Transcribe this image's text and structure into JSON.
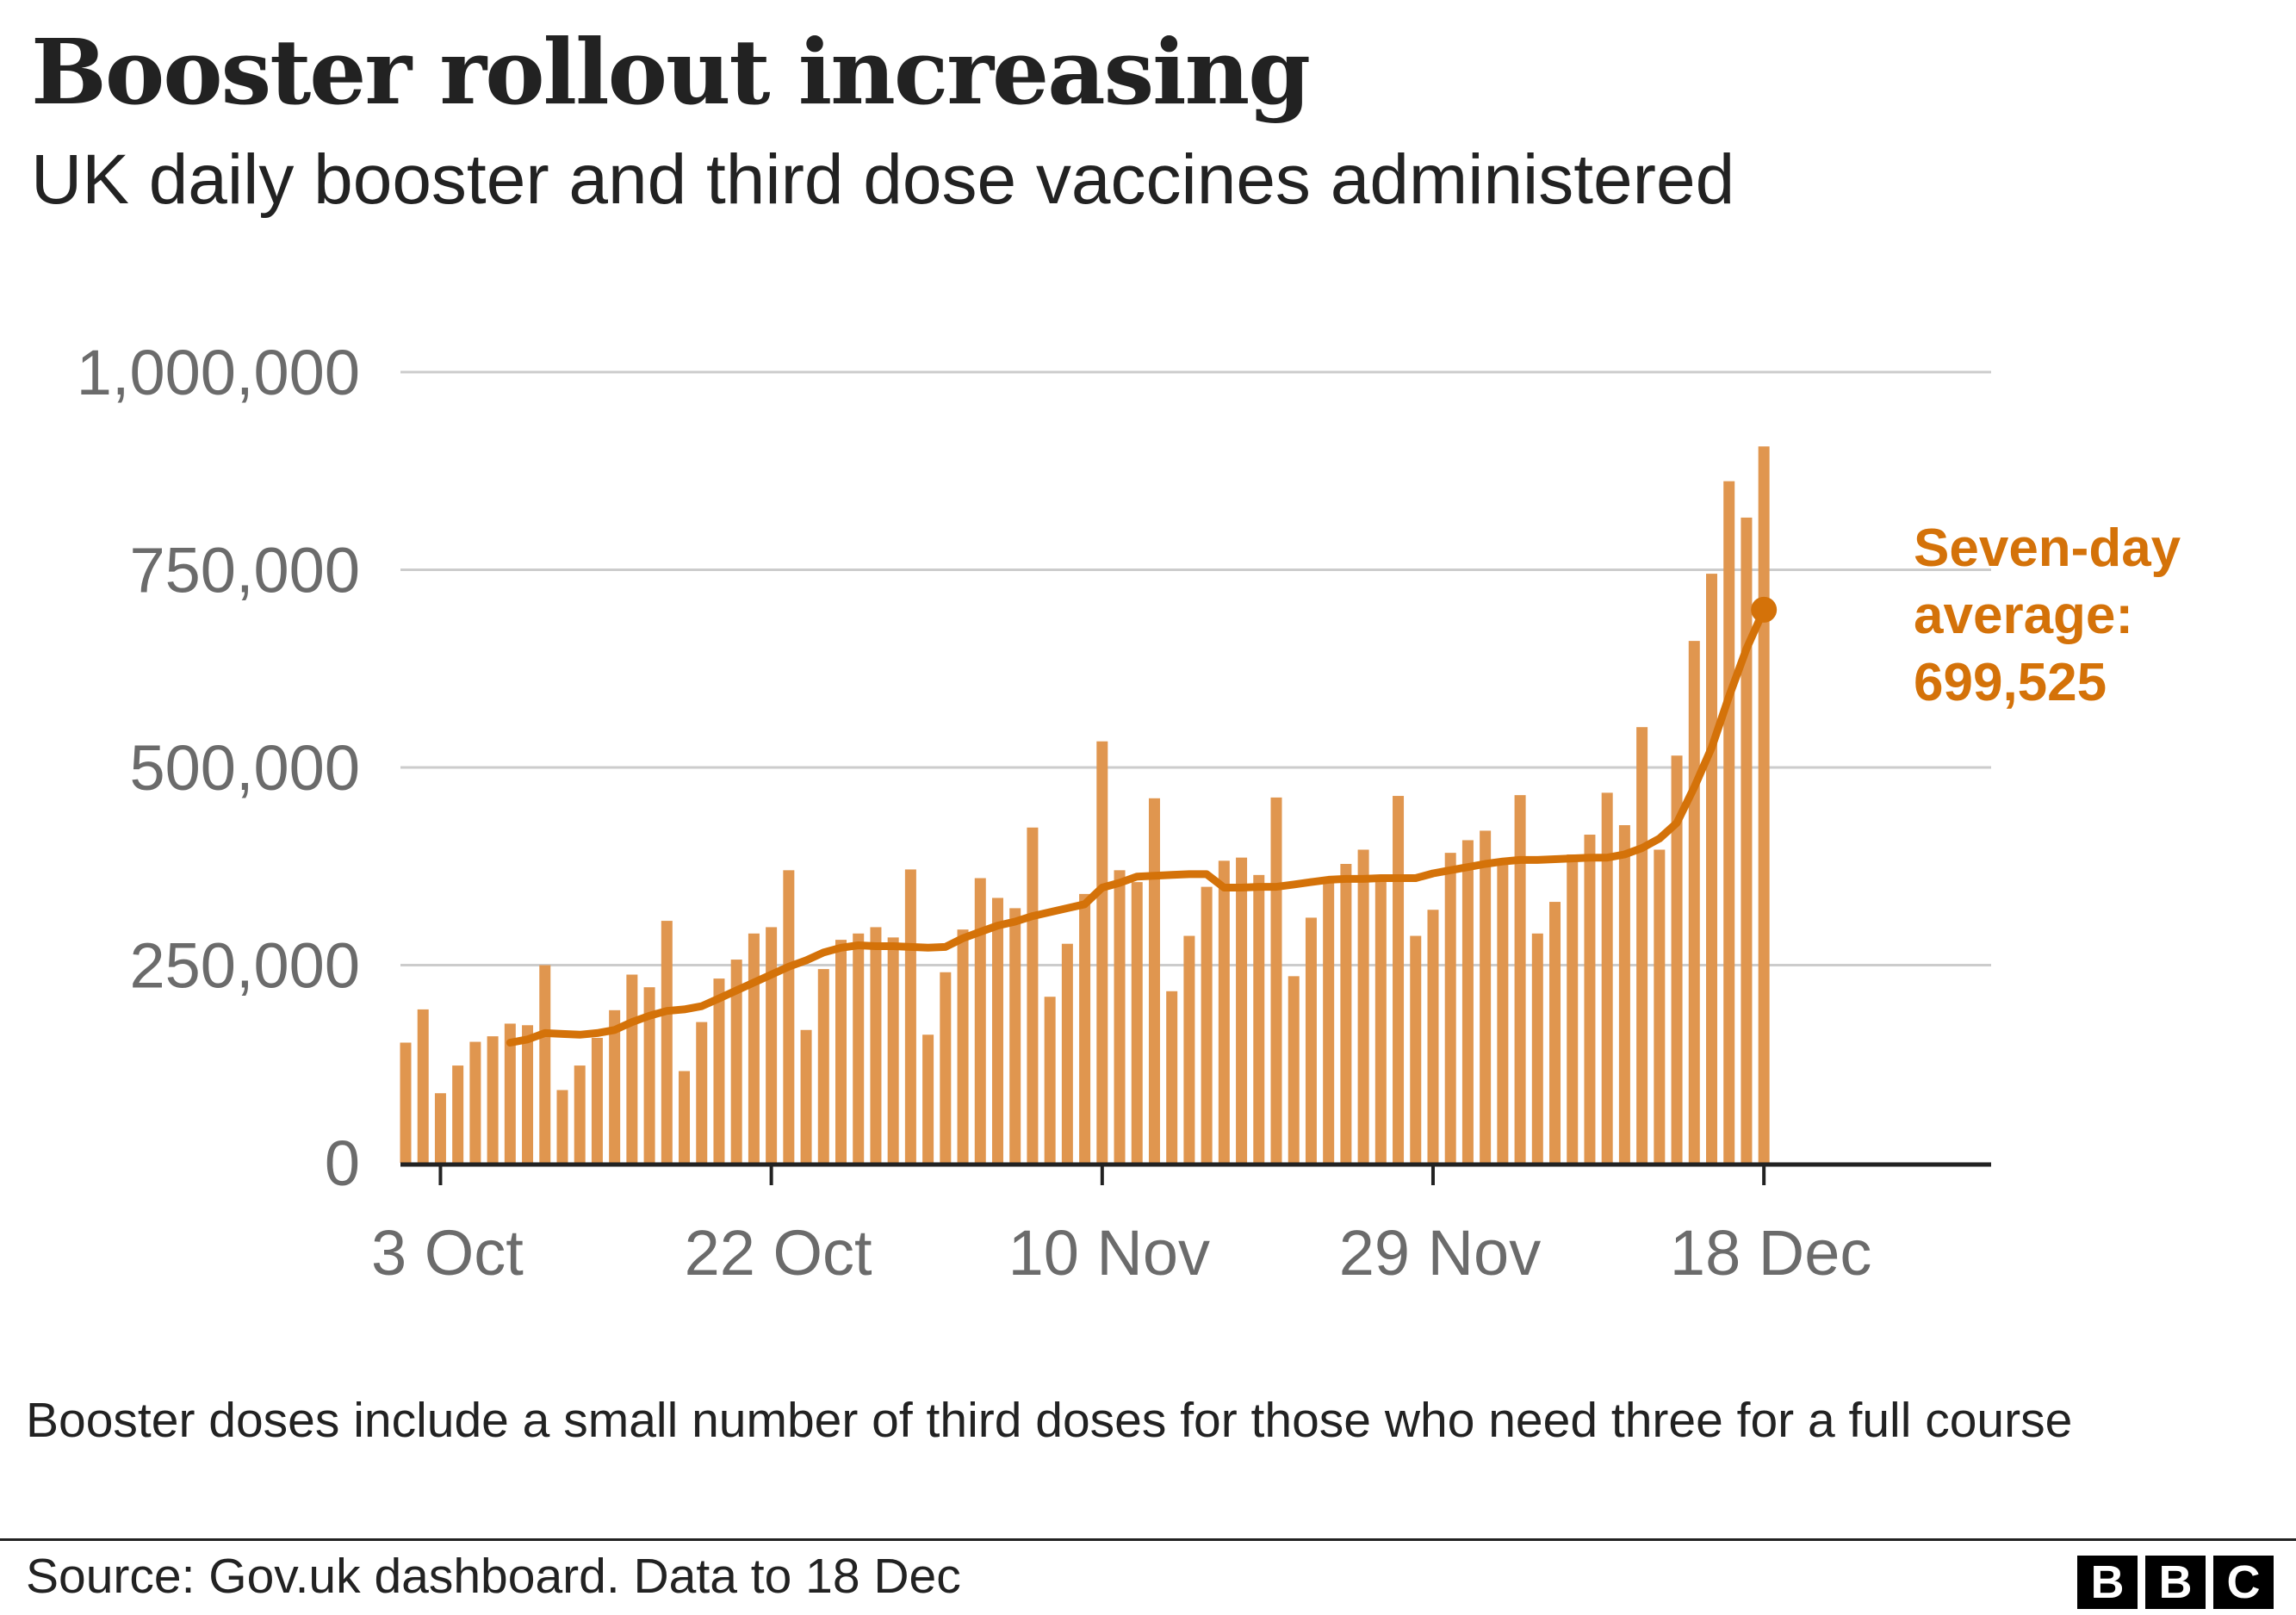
{
  "title": "Booster rollout increasing",
  "subtitle": "UK daily booster and third dose vaccines administered",
  "note": "Booster doses include a small number of third doses for those who need three for a full course",
  "source": "Source: Gov.uk dashboard. Data to 18 Dec",
  "logo": [
    "B",
    "B",
    "C"
  ],
  "colors": {
    "bars": "#e0964f",
    "line": "#d47209",
    "text": "#222222",
    "axis_text": "#6b6b6b",
    "grid": "#cccccc"
  },
  "chart_data": {
    "type": "bar",
    "x_start": "2021-10-01",
    "x_end": "2021-12-18",
    "ylim": [
      0,
      1000000
    ],
    "yticks": [
      0,
      250000,
      500000,
      750000,
      1000000
    ],
    "ytick_labels": [
      "0",
      "250,000",
      "500,000",
      "750,000",
      "1,000,000"
    ],
    "xticks": [
      "2021-10-03",
      "2021-10-22",
      "2021-11-10",
      "2021-11-29",
      "2021-12-18"
    ],
    "xtick_labels": [
      "3 Oct",
      "22 Oct",
      "10 Nov",
      "29 Nov",
      "18 Dec"
    ],
    "grid": true,
    "series": [
      {
        "type": "bar",
        "values": [
          152000,
          194000,
          88000,
          123000,
          153000,
          160000,
          176000,
          174000,
          250000,
          92000,
          123000,
          158000,
          193000,
          238000,
          222000,
          306000,
          116000,
          178000,
          233000,
          257000,
          290000,
          298000,
          370000,
          168000,
          245000,
          282000,
          290000,
          298000,
          285000,
          371000,
          162000,
          241000,
          295000,
          360000,
          335000,
          322000,
          424000,
          210000,
          277000,
          340000,
          533000,
          370000,
          355000,
          461000,
          217000,
          287000,
          349000,
          382000,
          386000,
          364000,
          462000,
          236000,
          310000,
          361000,
          378000,
          396000,
          359000,
          464000,
          287000,
          320000,
          392000,
          408000,
          420000,
          382000,
          465000,
          290000,
          330000,
          390000,
          415000,
          468000,
          427000,
          551000,
          396000,
          515000,
          660000,
          745000,
          862000,
          816000,
          906000
        ]
      },
      {
        "type": "line",
        "values": [
          null,
          null,
          null,
          null,
          null,
          null,
          152000,
          156000,
          164000,
          163000,
          162000,
          164000,
          168000,
          178000,
          186000,
          192000,
          194000,
          198000,
          208000,
          218000,
          228000,
          238000,
          248000,
          256000,
          266000,
          272000,
          275000,
          274000,
          274000,
          273000,
          272000,
          273000,
          284000,
          292000,
          300000,
          305000,
          312000,
          317000,
          322000,
          327000,
          348000,
          354000,
          362000,
          363000,
          364000,
          365000,
          365000,
          348000,
          348000,
          349000,
          349000,
          352000,
          355000,
          358000,
          359000,
          359000,
          360000,
          360000,
          360000,
          366000,
          370000,
          374000,
          378000,
          381000,
          383000,
          383000,
          384000,
          385000,
          386000,
          386000,
          390000,
          398000,
          410000,
          430000,
          475000,
          525000,
          590000,
          650000,
          699525
        ]
      }
    ],
    "annotation": {
      "lines": [
        "Seven-day",
        "average:",
        "699,525"
      ],
      "value": 699525
    }
  }
}
